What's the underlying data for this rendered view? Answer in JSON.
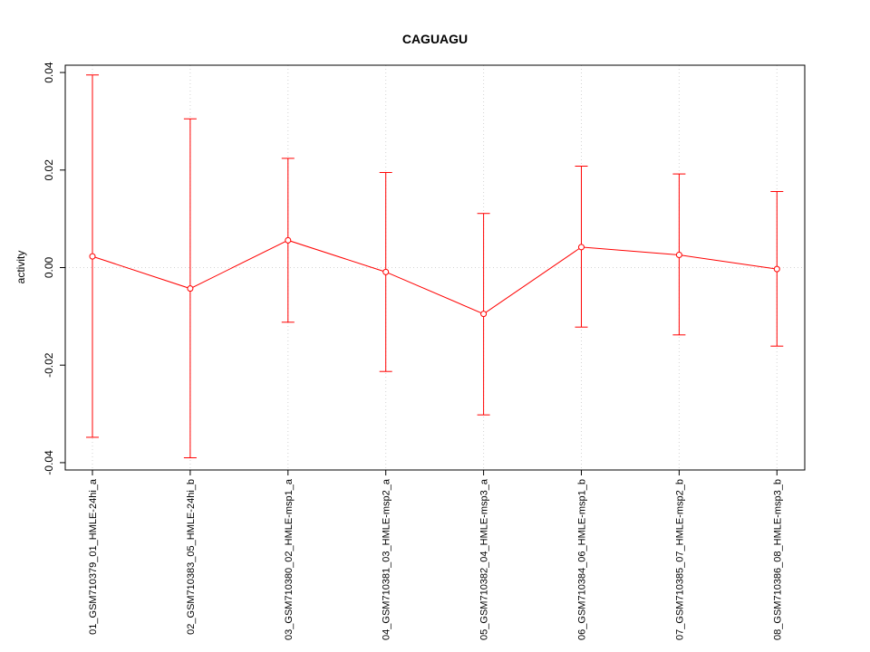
{
  "chart_data": {
    "type": "line",
    "title": "CAGUAGU",
    "xlabel": "",
    "ylabel": "activity",
    "ylim": [
      -0.0415,
      0.0415
    ],
    "yticks": [
      -0.04,
      -0.02,
      0.0,
      0.02,
      0.04
    ],
    "ytick_labels": [
      "-0.04",
      "-0.02",
      "0.00",
      "0.02",
      "0.04"
    ],
    "categories": [
      "01_GSM710379_01_HMLE-24hi_a",
      "02_GSM710383_05_HMLE-24hi_b",
      "03_GSM710380_02_HMLE-msp1_a",
      "04_GSM710381_03_HMLE-msp2_a",
      "05_GSM710382_04_HMLE-msp3_a",
      "06_GSM710384_06_HMLE-msp1_b",
      "07_GSM710385_07_HMLE-msp2_b",
      "08_GSM710386_08_HMLE-msp3_b"
    ],
    "series": [
      {
        "values": [
          0.0023,
          -0.0043,
          0.0056,
          -0.0009,
          -0.0095,
          0.0042,
          0.0026,
          -0.0003
        ],
        "lower": [
          -0.0348,
          -0.039,
          -0.0112,
          -0.0213,
          -0.0302,
          -0.0122,
          -0.0138,
          -0.0161
        ],
        "upper": [
          0.0395,
          0.0305,
          0.0224,
          0.0195,
          0.0111,
          0.0208,
          0.0192,
          0.0156
        ]
      }
    ],
    "hline": 0.0,
    "grid": "vertical dotted at categories",
    "color": "#ff0000"
  }
}
